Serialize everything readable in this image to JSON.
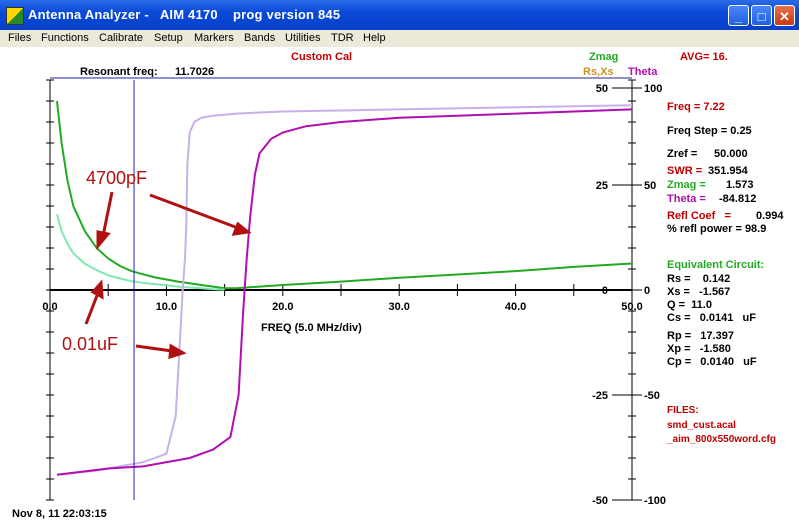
{
  "window": {
    "title": "Antenna Analyzer -   AIM 4170    prog version 845",
    "minimize_glyph": "_",
    "maximize_glyph": "□",
    "close_glyph": "✕"
  },
  "menu": [
    "Files",
    "Functions",
    "Calibrate",
    "Setup",
    "Markers",
    "Bands",
    "Utilities",
    "TDR",
    "Help"
  ],
  "header": {
    "cal_label": "Custom Cal",
    "resonant_label": "Resonant freq:",
    "resonant_value": "11.7026",
    "zmag_legend": "Zmag",
    "rsxs_legend": "Rs,Xs",
    "theta_legend": "Theta",
    "avg_text": "AVG=  16."
  },
  "colors": {
    "zmag": "#22aa22",
    "rsxs_light": "#80e8b0",
    "theta": "#b010b0",
    "theta_light": "#c8b0e8",
    "marker": "#2020c0",
    "red_text": "#c00000",
    "annotation": "#b01010"
  },
  "annotations": {
    "label_4700pf": "4700pF",
    "label_001uf": "0.01uF"
  },
  "chart_data": {
    "type": "line",
    "xlabel": "FREQ (5.0 MHz/div)",
    "xlim": [
      0,
      50
    ],
    "x_ticks": [
      "0.0",
      "10.0",
      "20.0",
      "30.0",
      "40.0",
      "50.0"
    ],
    "left_axis_ticks": [
      "50",
      "25",
      "0",
      "-25",
      "-50"
    ],
    "right_axis_ticks": [
      "100",
      "50",
      "0",
      "-50",
      "-100"
    ],
    "marker_freq": 7.22,
    "series": [
      {
        "name": "Zmag",
        "x": [
          0.6,
          1.0,
          1.5,
          2,
          3,
          4,
          5,
          6,
          7,
          8,
          9,
          10,
          11,
          12,
          13,
          14,
          15,
          16,
          18,
          20,
          25,
          30,
          35,
          40,
          45,
          50
        ],
        "y": [
          90,
          70,
          52,
          40,
          28,
          20,
          15,
          11.5,
          9,
          7.5,
          6,
          5,
          4,
          3.2,
          2.4,
          1.6,
          0.8,
          0.8,
          1.6,
          2.4,
          4,
          5.8,
          7.4,
          9,
          11,
          12.6
        ]
      },
      {
        "name": "Rs,Xs",
        "x": [
          0.6,
          1,
          1.5,
          2,
          3,
          4,
          5,
          6,
          7,
          8,
          9,
          10,
          11,
          12,
          13,
          14,
          15
        ],
        "y": [
          36,
          28,
          22,
          17.5,
          12.5,
          9.5,
          7,
          5.5,
          4.2,
          3.4,
          2.8,
          2.2,
          1.6,
          1.2,
          0.8,
          0.4,
          0.2
        ]
      },
      {
        "name": "Theta (light)",
        "x": [
          0.6,
          4,
          8,
          10,
          10.8,
          11.2,
          11.4,
          11.6,
          11.7,
          11.8,
          12,
          12.4,
          13,
          14,
          16,
          20,
          30,
          40,
          50
        ],
        "y": [
          -88,
          -86,
          -82,
          -78,
          -60,
          -20,
          0,
          15,
          30,
          60,
          75,
          80,
          82,
          83,
          84,
          85,
          86,
          87,
          88
        ]
      },
      {
        "name": "Theta",
        "x": [
          0.6,
          5,
          8,
          12,
          14,
          15.5,
          16.2,
          16.6,
          16.9,
          17.2,
          17.6,
          18,
          19,
          20,
          22,
          25,
          30,
          35,
          40,
          45,
          50
        ],
        "y": [
          -88,
          -85,
          -84,
          -80,
          -76,
          -70,
          -50,
          -10,
          15,
          35,
          55,
          65,
          72,
          75,
          78,
          80,
          82,
          83,
          84,
          85,
          86
        ]
      }
    ]
  },
  "panel": {
    "freq": "Freq = 7.22",
    "freq_step": "Freq Step = 0.25",
    "zref_label": "Zref =",
    "zref_value": "50.000",
    "swr_label": "SWR =",
    "swr_value": "351.954",
    "zmag_label": "Zmag =",
    "zmag_value": "1.573",
    "theta_label": "Theta =",
    "theta_value": "-84.812",
    "refl_coef_label": "Refl Coef   =",
    "refl_coef_value": "0.994",
    "refl_power": "% refl power = 98.9",
    "equiv_title": "Equivalent Circuit:",
    "rs": "Rs =    0.142",
    "xs": "Xs =   -1.567",
    "q": "Q =  11.0",
    "cs": "Cs =   0.0141   uF",
    "rp": "Rp =   17.397",
    "xp": "Xp =   -1.580",
    "cp": "Cp =   0.0140   uF",
    "files_title": "FILES:",
    "file1": "smd_cust.acal",
    "file2": "_aim_800x550word.cfg"
  },
  "footer": {
    "timestamp": "Nov 8, 11   22:03:15"
  }
}
